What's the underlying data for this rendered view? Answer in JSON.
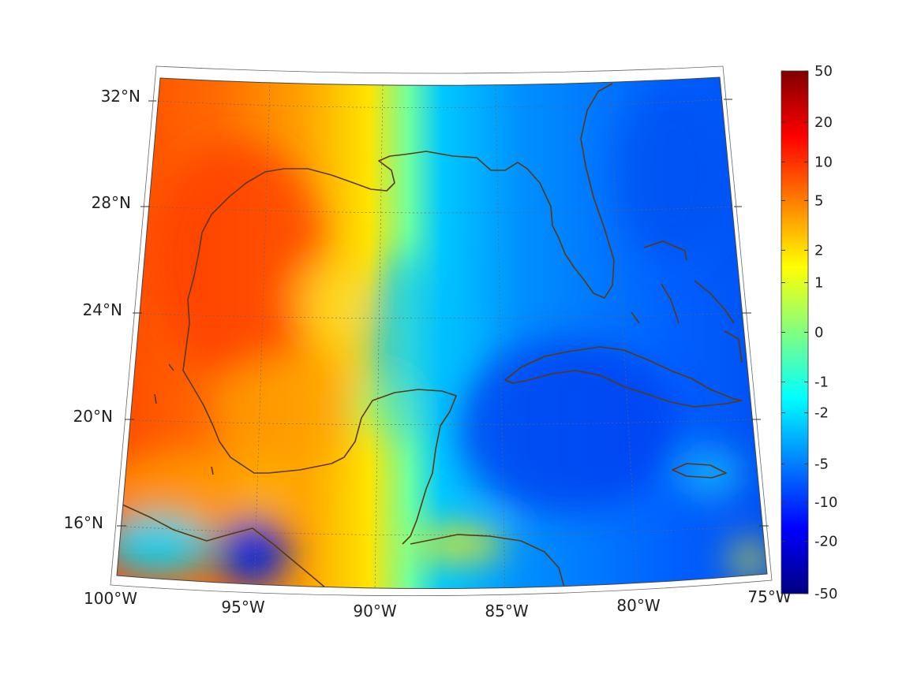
{
  "map": {
    "lat_labels": [
      "32°N",
      "28°N",
      "24°N",
      "20°N",
      "16°N"
    ],
    "lon_labels": [
      "100°W",
      "95°W",
      "90°W",
      "85°W",
      "80°W",
      "75°W"
    ]
  },
  "colorbar": {
    "tick_labels": [
      "50",
      "20",
      "10",
      "5",
      "2",
      "1",
      "0",
      "-1",
      "-2",
      "-5",
      "-10",
      "-20",
      "-50"
    ],
    "colormap": "jet",
    "colors": [
      "#800000",
      "#ff0000",
      "#ff8000",
      "#ffff00",
      "#80ff80",
      "#00ffff",
      "#0080ff",
      "#0000ff",
      "#000080"
    ]
  },
  "style": {
    "coastline_color": "#5a3a10",
    "grid_color": "#666666"
  }
}
